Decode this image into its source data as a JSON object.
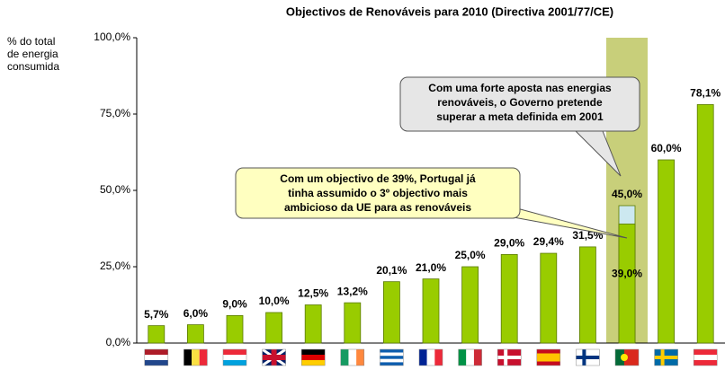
{
  "chart_data": {
    "type": "bar",
    "title": "Objectivos de Renováveis para 2010 (Directiva 2001/77/CE)",
    "ylabel": [
      "% do total",
      "de energia",
      "consumida"
    ],
    "categories": [
      null,
      null,
      null,
      null,
      null,
      null,
      null,
      null,
      null,
      null,
      null,
      null,
      null,
      null,
      null
    ],
    "series": [
      {
        "color": "#99cc00",
        "values": [
          5.7,
          6.0,
          9.0,
          10.0,
          12.5,
          13.2,
          20.1,
          21.0,
          25.0,
          29.0,
          29.4,
          31.5,
          39.0,
          60.0,
          78.1
        ],
        "value_labels": [
          "5,7%",
          "6,0%",
          "9,0%",
          "10,0%",
          "12,5%",
          "13,2%",
          "20,1%",
          "21,0%",
          "25,0%",
          "29,0%",
          "29,4%",
          "31,5%",
          "39,0%",
          "60,0%",
          "78,1%"
        ]
      },
      {
        "color": "#cce8f0",
        "values": [
          null,
          null,
          null,
          null,
          null,
          null,
          null,
          null,
          null,
          null,
          null,
          null,
          45.0,
          null,
          null
        ],
        "value_labels": [
          null,
          null,
          null,
          null,
          null,
          null,
          null,
          null,
          null,
          null,
          null,
          null,
          "45,0%",
          null,
          null
        ]
      }
    ],
    "ylim": [
      0,
      100
    ],
    "yticks": [
      {
        "value": 0,
        "label": "0,0%"
      },
      {
        "value": 25,
        "label": "25,0%"
      },
      {
        "value": 50,
        "label": "50,0%"
      },
      {
        "value": 75,
        "label": "75,0%"
      },
      {
        "value": 100,
        "label": "100,0%"
      }
    ],
    "grid": false,
    "annotations": [
      {
        "lines": [
          "Com uma forte aposta nas energias",
          "renováveis, o Governo pretende",
          "superar a meta definida em 2001"
        ]
      },
      {
        "lines": [
          "Com um objectivo de 39%, Portugal já",
          "tinha assumido o 3º objectivo mais",
          "ambicioso da UE para as renováveis"
        ]
      }
    ]
  }
}
